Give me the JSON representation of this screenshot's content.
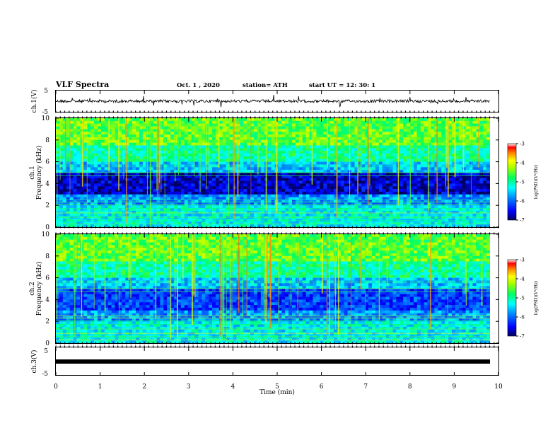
{
  "header": {
    "title": "VLF Spectra",
    "date": "Oct. 1  , 2020",
    "station": "station= ATH",
    "start_ut": "start  UT  =   12: 30: 1"
  },
  "panels": {
    "ch1_wave": {
      "ylabel": "ch.1(V)",
      "yticks": [
        "5",
        "-5"
      ]
    },
    "ch1_spec": {
      "ylabel_ch": "ch.1",
      "ylabel": "Frequency  (kHz)",
      "yticks": [
        "0",
        "2",
        "4",
        "6",
        "8",
        "10"
      ]
    },
    "ch2_spec": {
      "ylabel_ch": "ch.2",
      "ylabel": "Frequency  (kHz)",
      "yticks": [
        "0",
        "2",
        "4",
        "6",
        "8",
        "10"
      ]
    },
    "ch3_wave": {
      "ylabel": "ch.3(V)",
      "yticks": [
        "5",
        "-5"
      ]
    }
  },
  "colorbar": {
    "ticks": [
      "-3",
      "-4",
      "-5",
      "-6",
      "-7"
    ],
    "label": "log(PSD)(V²/Hz)",
    "colors": [
      "#000080",
      "#0000ff",
      "#0080ff",
      "#00ffff",
      "#00ff80",
      "#80ff00",
      "#ffff00",
      "#ff8000",
      "#ff0000",
      "#ffffff"
    ]
  },
  "xaxis": {
    "label": "Time  (min)",
    "ticks": [
      "0",
      "1",
      "2",
      "3",
      "4",
      "5",
      "6",
      "7",
      "8",
      "9",
      "10"
    ]
  },
  "chart_data": [
    {
      "type": "line",
      "ylabel": "ch.1(V)",
      "ylim": [
        -5,
        5
      ],
      "xlim": [
        0,
        10
      ]
    },
    {
      "type": "heatmap",
      "ylabel": "Frequency  (kHz)",
      "ylim": [
        0,
        10
      ],
      "xlim": [
        0,
        10
      ],
      "clim": [
        -7,
        -3
      ]
    },
    {
      "type": "heatmap",
      "ylabel": "Frequency  (kHz)",
      "ylim": [
        0,
        10
      ],
      "xlim": [
        0,
        10
      ],
      "clim": [
        -7,
        -3
      ]
    },
    {
      "type": "line",
      "ylabel": "ch.3(V)",
      "ylim": [
        -5,
        5
      ],
      "xlim": [
        0,
        10
      ]
    }
  ]
}
